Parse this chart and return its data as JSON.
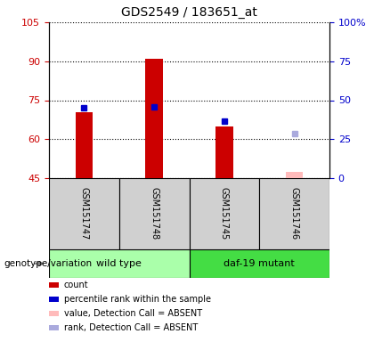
{
  "title": "GDS2549 / 183651_at",
  "samples": [
    "GSM151747",
    "GSM151748",
    "GSM151745",
    "GSM151746"
  ],
  "ymin": 45,
  "ymax": 105,
  "yticks_left": [
    45,
    60,
    75,
    90,
    105
  ],
  "yticks_right": [
    0,
    25,
    50,
    75,
    100
  ],
  "red_bars": [
    70.5,
    91.0,
    65.0,
    null
  ],
  "blue_squares": [
    72.0,
    72.5,
    67.0,
    null
  ],
  "blue_absent_squares": [
    null,
    null,
    null,
    62.0
  ],
  "pink_bars": [
    null,
    null,
    null,
    47.5
  ],
  "bar_color": "#cc0000",
  "blue_color": "#0000cc",
  "blue_absent_color": "#aaaadd",
  "pink_bar_color": "#ffbbbb",
  "bar_width": 0.25,
  "baseline": 45,
  "wt_color": "#aaffaa",
  "daf_color": "#44dd44",
  "gray_color": "#d0d0d0",
  "legend_items": [
    {
      "label": "count",
      "color": "#cc0000"
    },
    {
      "label": "percentile rank within the sample",
      "color": "#0000cc"
    },
    {
      "label": "value, Detection Call = ABSENT",
      "color": "#ffbbbb"
    },
    {
      "label": "rank, Detection Call = ABSENT",
      "color": "#aaaadd"
    }
  ]
}
